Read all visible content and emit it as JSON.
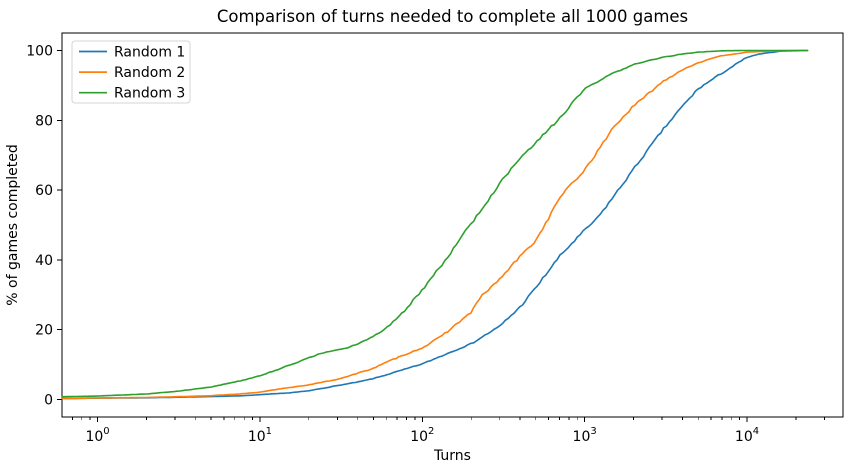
{
  "chart_data": {
    "type": "line",
    "title": "Comparison of turns needed to complete all 1000 games",
    "xlabel": "Turns",
    "ylabel": "% of games completed",
    "x_scale": "log",
    "grid": false,
    "xlim": [
      0.604,
      39000
    ],
    "ylim": [
      -5,
      105
    ],
    "x_major_ticks": [
      {
        "base": "10",
        "exp": "0",
        "value": 1
      },
      {
        "base": "10",
        "exp": "1",
        "value": 10
      },
      {
        "base": "10",
        "exp": "2",
        "value": 100
      },
      {
        "base": "10",
        "exp": "3",
        "value": 1000
      },
      {
        "base": "10",
        "exp": "4",
        "value": 10000
      }
    ],
    "y_ticks": [
      0,
      20,
      40,
      60,
      80,
      100
    ],
    "legend_position": "upper left",
    "series": [
      {
        "name": "Random 1",
        "color": "#1f77b4",
        "points": [
          [
            0.604,
            0.3
          ],
          [
            1,
            0.4
          ],
          [
            2,
            0.5
          ],
          [
            3,
            0.65
          ],
          [
            5,
            0.85
          ],
          [
            8,
            1.1
          ],
          [
            10,
            1.4
          ],
          [
            15,
            1.9
          ],
          [
            20,
            2.5
          ],
          [
            30,
            4
          ],
          [
            40,
            5
          ],
          [
            50,
            6
          ],
          [
            70,
            8
          ],
          [
            100,
            10.2
          ],
          [
            130,
            12.4
          ],
          [
            200,
            16
          ],
          [
            300,
            21
          ],
          [
            400,
            26.5
          ],
          [
            500,
            32
          ],
          [
            700,
            41
          ],
          [
            1000,
            48.5
          ],
          [
            1200,
            52
          ],
          [
            1500,
            58
          ],
          [
            2000,
            66
          ],
          [
            3000,
            77
          ],
          [
            4000,
            84
          ],
          [
            5000,
            89
          ],
          [
            7000,
            93.5
          ],
          [
            10000,
            98
          ],
          [
            12000,
            99
          ],
          [
            16000,
            99.8
          ],
          [
            23600,
            100
          ]
        ]
      },
      {
        "name": "Random 2",
        "color": "#ff7f0e",
        "points": [
          [
            0.604,
            0.3
          ],
          [
            1,
            0.45
          ],
          [
            2,
            0.6
          ],
          [
            3,
            0.8
          ],
          [
            5,
            1.1
          ],
          [
            8,
            1.7
          ],
          [
            10,
            2.1
          ],
          [
            14,
            3.2
          ],
          [
            20,
            4.2
          ],
          [
            30,
            5.8
          ],
          [
            40,
            7.5
          ],
          [
            50,
            9
          ],
          [
            70,
            12
          ],
          [
            100,
            14.8
          ],
          [
            130,
            18
          ],
          [
            200,
            25
          ],
          [
            230,
            29.5
          ],
          [
            300,
            34.5
          ],
          [
            400,
            41
          ],
          [
            500,
            45.5
          ],
          [
            600,
            52
          ],
          [
            715,
            58.5
          ],
          [
            950,
            64.5
          ],
          [
            1200,
            71
          ],
          [
            1500,
            78
          ],
          [
            2000,
            84
          ],
          [
            3000,
            91
          ],
          [
            4000,
            94.5
          ],
          [
            5000,
            96.5
          ],
          [
            7000,
            98.5
          ],
          [
            10000,
            99.5
          ],
          [
            15000,
            99.9
          ],
          [
            23600,
            100
          ]
        ]
      },
      {
        "name": "Random 3",
        "color": "#2ca02c",
        "points": [
          [
            0.604,
            0.8
          ],
          [
            1,
            1
          ],
          [
            2,
            1.6
          ],
          [
            3,
            2.3
          ],
          [
            5,
            3.6
          ],
          [
            8,
            5.6
          ],
          [
            10,
            6.8
          ],
          [
            14,
            9.2
          ],
          [
            20,
            12
          ],
          [
            25,
            13.5
          ],
          [
            35,
            14.8
          ],
          [
            50,
            18
          ],
          [
            60,
            20.5
          ],
          [
            80,
            26
          ],
          [
            100,
            31.5
          ],
          [
            150,
            42
          ],
          [
            175,
            47
          ],
          [
            230,
            54
          ],
          [
            300,
            62
          ],
          [
            400,
            69
          ],
          [
            500,
            73.5
          ],
          [
            715,
            81
          ],
          [
            1000,
            89
          ],
          [
            1500,
            93.5
          ],
          [
            2000,
            96
          ],
          [
            3000,
            98
          ],
          [
            4000,
            99
          ],
          [
            5000,
            99.5
          ],
          [
            7000,
            99.9
          ],
          [
            10000,
            100
          ],
          [
            23600,
            100
          ]
        ]
      }
    ],
    "colors": {
      "background": "#ffffff",
      "spine": "#000000",
      "tick": "#000000",
      "text": "#000000",
      "legend_border": "#d5d5d5",
      "legend_background": "#ffffff"
    }
  }
}
